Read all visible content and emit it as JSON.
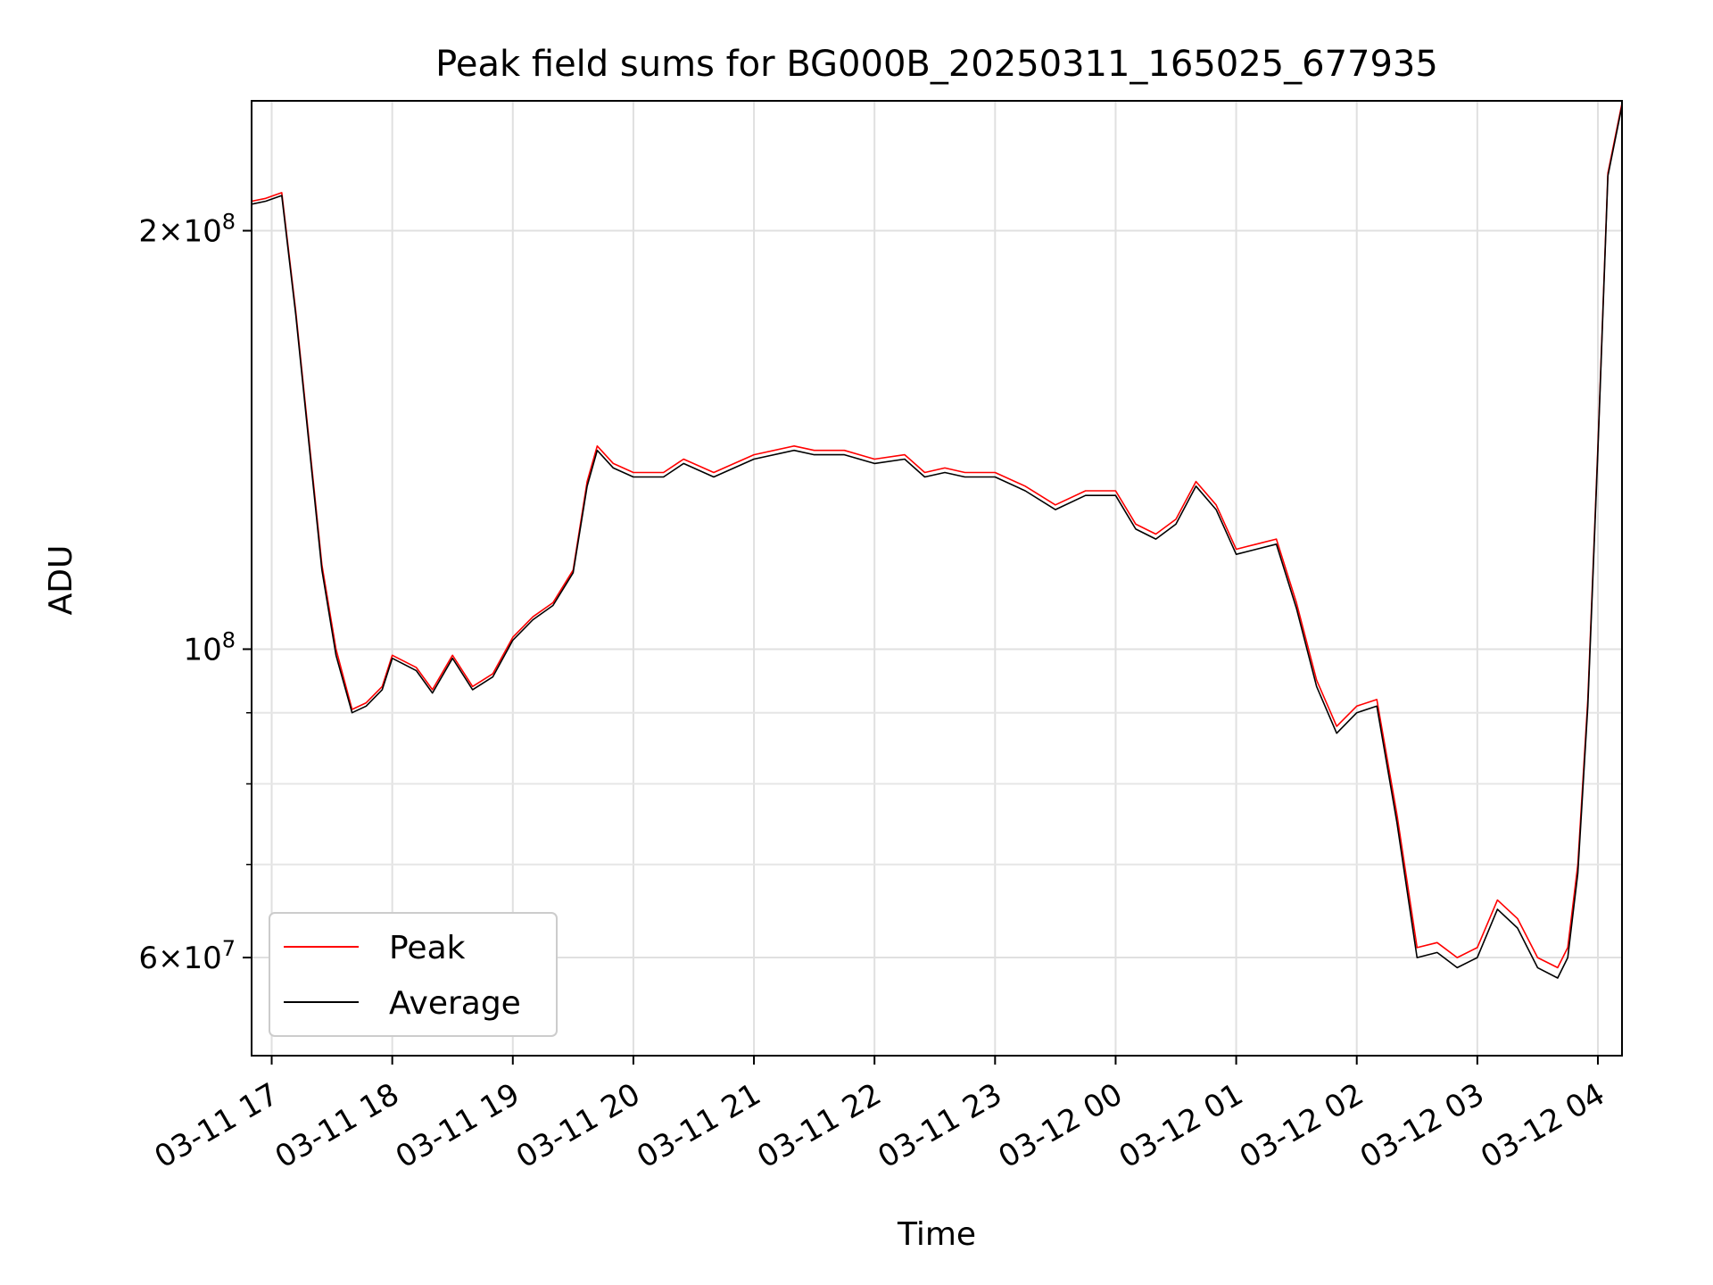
{
  "chart_data": {
    "type": "line",
    "title": "Peak field sums for BG000B_20250311_165025_677935",
    "xlabel": "Time",
    "ylabel": "ADU",
    "yscale": "log",
    "ylim": [
      51000000,
      248000000
    ],
    "xlim": [
      "2025-03-11 16:50",
      "2025-03-12 04:12"
    ],
    "grid": true,
    "legend_position": "lower-left",
    "x_ticks": [
      "03-11 17",
      "03-11 18",
      "03-11 19",
      "03-11 20",
      "03-11 21",
      "03-11 22",
      "03-11 23",
      "03-12 00",
      "03-12 01",
      "03-12 02",
      "03-12 03",
      "03-12 04"
    ],
    "y_ticks_major": [
      {
        "value": 200000000,
        "mantissa": "2",
        "exponent": "8"
      },
      {
        "value": 100000000,
        "mantissa": "",
        "exponent": "8"
      },
      {
        "value": 60000000,
        "mantissa": "6",
        "exponent": "7"
      }
    ],
    "y_ticks_minor": [
      70000000,
      80000000,
      90000000
    ],
    "x": [
      "2025-03-11 16:50",
      "2025-03-11 16:57",
      "2025-03-11 17:05",
      "2025-03-11 17:12",
      "2025-03-11 17:20",
      "2025-03-11 17:25",
      "2025-03-11 17:32",
      "2025-03-11 17:40",
      "2025-03-11 17:47",
      "2025-03-11 17:55",
      "2025-03-11 18:00",
      "2025-03-11 18:12",
      "2025-03-11 18:20",
      "2025-03-11 18:30",
      "2025-03-11 18:40",
      "2025-03-11 18:50",
      "2025-03-11 19:00",
      "2025-03-11 19:10",
      "2025-03-11 19:20",
      "2025-03-11 19:30",
      "2025-03-11 19:37",
      "2025-03-11 19:42",
      "2025-03-11 19:50",
      "2025-03-11 20:00",
      "2025-03-11 20:15",
      "2025-03-11 20:25",
      "2025-03-11 20:40",
      "2025-03-11 21:00",
      "2025-03-11 21:20",
      "2025-03-11 21:30",
      "2025-03-11 21:45",
      "2025-03-11 22:00",
      "2025-03-11 22:15",
      "2025-03-11 22:25",
      "2025-03-11 22:35",
      "2025-03-11 22:45",
      "2025-03-11 23:00",
      "2025-03-11 23:15",
      "2025-03-11 23:30",
      "2025-03-11 23:45",
      "2025-03-12 00:00",
      "2025-03-12 00:10",
      "2025-03-12 00:20",
      "2025-03-12 00:30",
      "2025-03-12 00:40",
      "2025-03-12 00:50",
      "2025-03-12 01:00",
      "2025-03-12 01:10",
      "2025-03-12 01:20",
      "2025-03-12 01:30",
      "2025-03-12 01:40",
      "2025-03-12 01:50",
      "2025-03-12 02:00",
      "2025-03-12 02:10",
      "2025-03-12 02:20",
      "2025-03-12 02:30",
      "2025-03-12 02:40",
      "2025-03-12 02:50",
      "2025-03-12 03:00",
      "2025-03-12 03:10",
      "2025-03-12 03:20",
      "2025-03-12 03:30",
      "2025-03-12 03:40",
      "2025-03-12 03:45",
      "2025-03-12 03:50",
      "2025-03-12 03:55",
      "2025-03-12 04:00",
      "2025-03-12 04:05",
      "2025-03-12 04:12"
    ],
    "series": [
      {
        "name": "Peak",
        "color": "#ff0000",
        "values": [
          210000000,
          211000000,
          213000000,
          175000000,
          135000000,
          115000000,
          100000000,
          90500000,
          91500000,
          94000000,
          99000000,
          97000000,
          93500000,
          99000000,
          94000000,
          96000000,
          102000000,
          105500000,
          108000000,
          114000000,
          132000000,
          140000000,
          136000000,
          134000000,
          134000000,
          137000000,
          134000000,
          138000000,
          140000000,
          139000000,
          139000000,
          137000000,
          138000000,
          134000000,
          135000000,
          134000000,
          134000000,
          131000000,
          127000000,
          130000000,
          130000000,
          123000000,
          121000000,
          124000000,
          132000000,
          127000000,
          118000000,
          119000000,
          120000000,
          108000000,
          95000000,
          88000000,
          91000000,
          92000000,
          76000000,
          61000000,
          61500000,
          60000000,
          61000000,
          66000000,
          64000000,
          60000000,
          59000000,
          61000000,
          70000000,
          92000000,
          140000000,
          220000000,
          247000000
        ]
      },
      {
        "name": "Average",
        "color": "#000000",
        "values": [
          209000000,
          210000000,
          212000000,
          174000000,
          134000000,
          114000000,
          99000000,
          90000000,
          91000000,
          93500000,
          98500000,
          96500000,
          93000000,
          98500000,
          93500000,
          95500000,
          101500000,
          105000000,
          107500000,
          113500000,
          131000000,
          139000000,
          135000000,
          133000000,
          133000000,
          136000000,
          133000000,
          137000000,
          139000000,
          138000000,
          138000000,
          136000000,
          137000000,
          133000000,
          134000000,
          133000000,
          133000000,
          130000000,
          126000000,
          129000000,
          129000000,
          122000000,
          120000000,
          123000000,
          131000000,
          126000000,
          117000000,
          118000000,
          119000000,
          107000000,
          94000000,
          87000000,
          90000000,
          91000000,
          75000000,
          60000000,
          60500000,
          59000000,
          60000000,
          65000000,
          63000000,
          59000000,
          58000000,
          60000000,
          69000000,
          91000000,
          139000000,
          219000000,
          246000000
        ]
      }
    ]
  }
}
